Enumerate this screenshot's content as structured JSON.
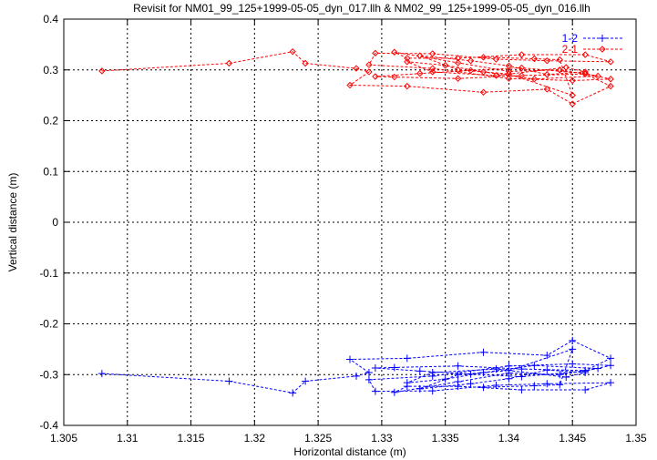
{
  "chart_data": {
    "type": "line",
    "title": "Revisit for NM01_99_125+1999-05-05_dyn_017.llh & NM02_99_125+1999-05-05_dyn_016.llh",
    "xlabel": "Horizontal distance (m)",
    "ylabel": "Vertical distance (m)",
    "xlim": [
      1.305,
      1.35
    ],
    "ylim": [
      -0.4,
      0.4
    ],
    "x_ticks": [
      "1.305",
      "1.31",
      "1.315",
      "1.32",
      "1.325",
      "1.33",
      "1.335",
      "1.34",
      "1.345",
      "1.35"
    ],
    "y_ticks": [
      "-0.4",
      "-0.3",
      "-0.2",
      "-0.1",
      "0",
      "0.1",
      "0.2",
      "0.3",
      "0.4"
    ],
    "grid": true,
    "legend_position": "top-right",
    "series": [
      {
        "name": "1-2",
        "color": "#0000ff",
        "marker": "plus",
        "points": [
          [
            1.308,
            -0.298
          ],
          [
            1.318,
            -0.313
          ],
          [
            1.323,
            -0.336
          ],
          [
            1.324,
            -0.313
          ],
          [
            1.328,
            -0.303
          ],
          [
            1.329,
            -0.296
          ],
          [
            1.3275,
            -0.27
          ],
          [
            1.332,
            -0.268
          ],
          [
            1.338,
            -0.256
          ],
          [
            1.343,
            -0.262
          ],
          [
            1.345,
            -0.233
          ],
          [
            1.348,
            -0.268
          ],
          [
            1.346,
            -0.292
          ],
          [
            1.341,
            -0.289
          ],
          [
            1.336,
            -0.283
          ],
          [
            1.331,
            -0.286
          ],
          [
            1.3295,
            -0.287
          ],
          [
            1.333,
            -0.293
          ],
          [
            1.337,
            -0.299
          ],
          [
            1.341,
            -0.304
          ],
          [
            1.346,
            -0.293
          ],
          [
            1.348,
            -0.282
          ],
          [
            1.345,
            -0.279
          ],
          [
            1.34,
            -0.283
          ],
          [
            1.334,
            -0.303
          ],
          [
            1.329,
            -0.31
          ],
          [
            1.3295,
            -0.333
          ],
          [
            1.334,
            -0.332
          ],
          [
            1.339,
            -0.321
          ],
          [
            1.343,
            -0.318
          ],
          [
            1.348,
            -0.316
          ],
          [
            1.346,
            -0.33
          ],
          [
            1.341,
            -0.33
          ],
          [
            1.336,
            -0.323
          ],
          [
            1.332,
            -0.323
          ],
          [
            1.331,
            -0.335
          ],
          [
            1.336,
            -0.314
          ],
          [
            1.34,
            -0.297
          ],
          [
            1.344,
            -0.3
          ],
          [
            1.347,
            -0.288
          ],
          [
            1.342,
            -0.282
          ],
          [
            1.338,
            -0.296
          ],
          [
            1.335,
            -0.309
          ],
          [
            1.332,
            -0.316
          ],
          [
            1.334,
            -0.296
          ],
          [
            1.339,
            -0.289
          ],
          [
            1.3445,
            -0.305
          ],
          [
            1.346,
            -0.296
          ],
          [
            1.343,
            -0.291
          ],
          [
            1.34,
            -0.308
          ],
          [
            1.337,
            -0.318
          ],
          [
            1.333,
            -0.328
          ],
          [
            1.336,
            -0.3
          ],
          [
            1.34,
            -0.292
          ],
          [
            1.345,
            -0.25
          ],
          [
            1.344,
            -0.32
          ],
          [
            1.342,
            -0.322
          ],
          [
            1.338,
            -0.325
          ]
        ]
      },
      {
        "name": "2-1",
        "color": "#ff0000",
        "marker": "diamond",
        "points": [
          [
            1.308,
            0.298
          ],
          [
            1.318,
            0.313
          ],
          [
            1.323,
            0.336
          ],
          [
            1.324,
            0.313
          ],
          [
            1.328,
            0.303
          ],
          [
            1.329,
            0.296
          ],
          [
            1.3275,
            0.27
          ],
          [
            1.332,
            0.268
          ],
          [
            1.338,
            0.256
          ],
          [
            1.343,
            0.262
          ],
          [
            1.345,
            0.233
          ],
          [
            1.348,
            0.268
          ],
          [
            1.346,
            0.292
          ],
          [
            1.341,
            0.289
          ],
          [
            1.336,
            0.283
          ],
          [
            1.331,
            0.286
          ],
          [
            1.3295,
            0.287
          ],
          [
            1.333,
            0.293
          ],
          [
            1.337,
            0.299
          ],
          [
            1.341,
            0.304
          ],
          [
            1.346,
            0.293
          ],
          [
            1.348,
            0.282
          ],
          [
            1.345,
            0.279
          ],
          [
            1.34,
            0.283
          ],
          [
            1.334,
            0.303
          ],
          [
            1.329,
            0.31
          ],
          [
            1.3295,
            0.333
          ],
          [
            1.334,
            0.332
          ],
          [
            1.339,
            0.321
          ],
          [
            1.343,
            0.318
          ],
          [
            1.348,
            0.316
          ],
          [
            1.346,
            0.33
          ],
          [
            1.341,
            0.33
          ],
          [
            1.336,
            0.323
          ],
          [
            1.332,
            0.323
          ],
          [
            1.331,
            0.335
          ],
          [
            1.336,
            0.314
          ],
          [
            1.34,
            0.297
          ],
          [
            1.344,
            0.3
          ],
          [
            1.347,
            0.288
          ],
          [
            1.342,
            0.282
          ],
          [
            1.338,
            0.296
          ],
          [
            1.335,
            0.309
          ],
          [
            1.332,
            0.316
          ],
          [
            1.334,
            0.296
          ],
          [
            1.339,
            0.289
          ],
          [
            1.3445,
            0.305
          ],
          [
            1.346,
            0.296
          ],
          [
            1.343,
            0.291
          ],
          [
            1.34,
            0.308
          ],
          [
            1.337,
            0.318
          ],
          [
            1.333,
            0.328
          ],
          [
            1.336,
            0.3
          ],
          [
            1.34,
            0.292
          ],
          [
            1.345,
            0.25
          ],
          [
            1.344,
            0.32
          ],
          [
            1.342,
            0.322
          ],
          [
            1.338,
            0.325
          ]
        ]
      }
    ]
  }
}
